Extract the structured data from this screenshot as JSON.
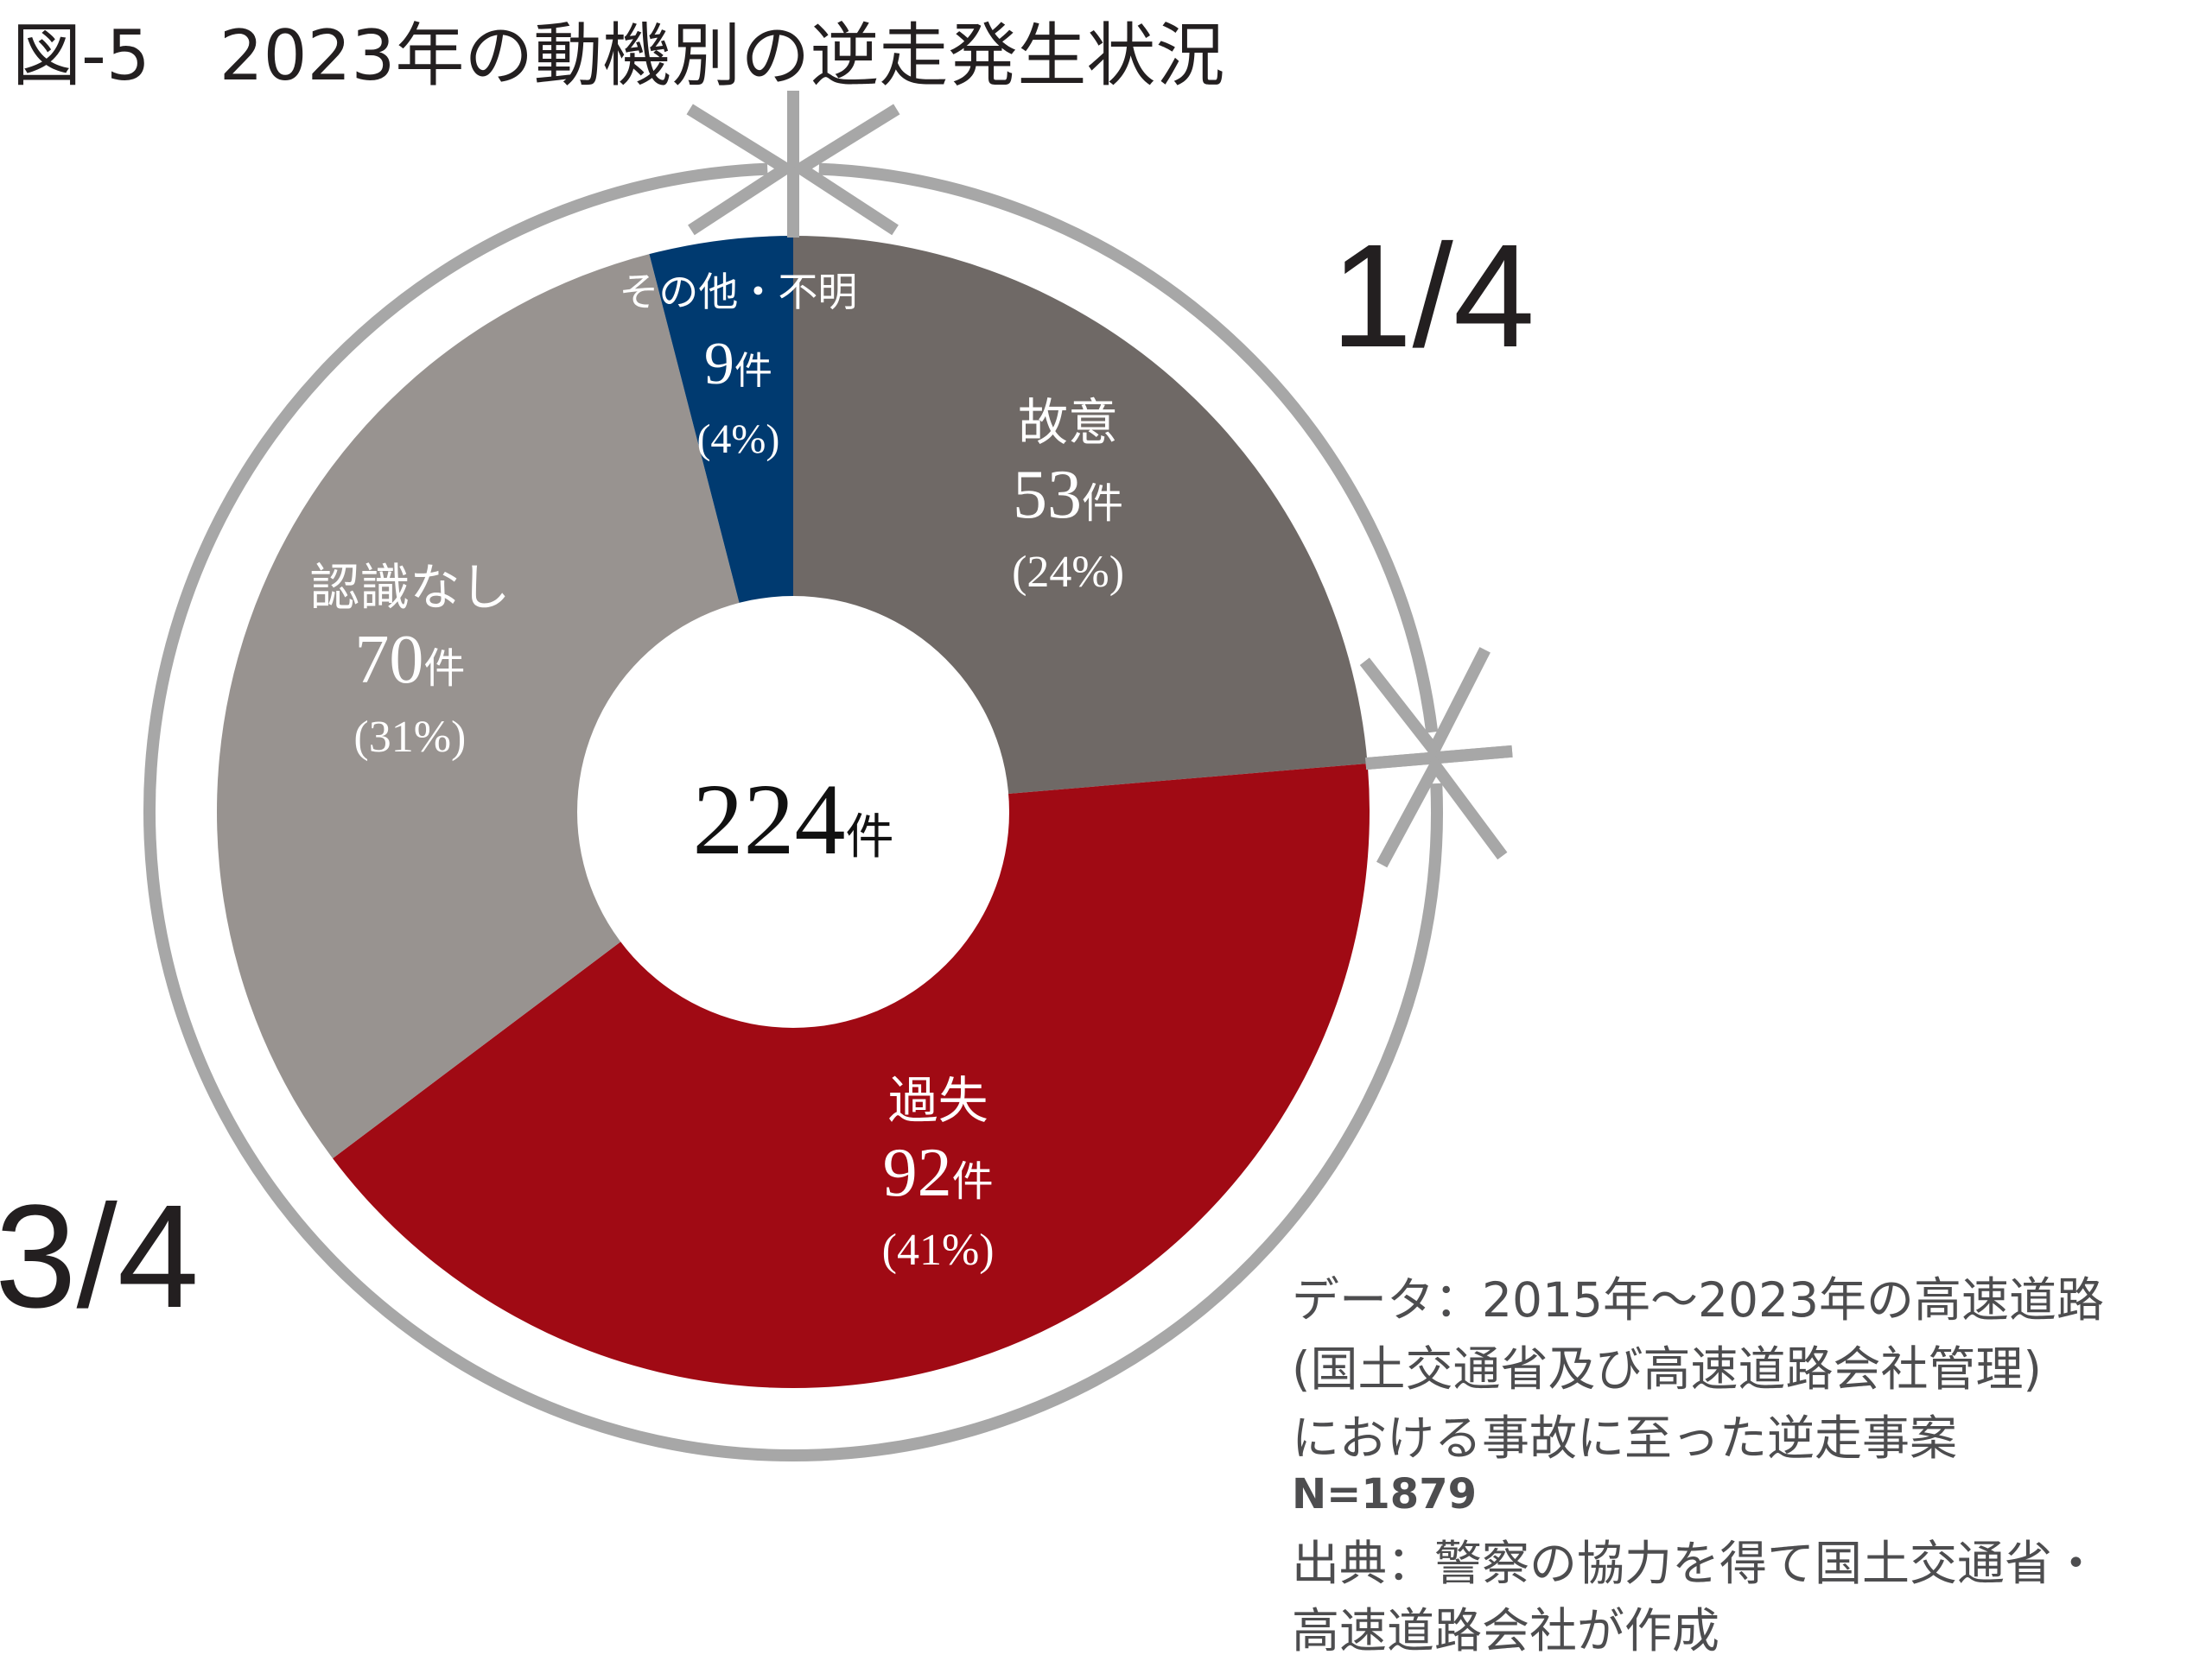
{
  "title": "図-5　2023年の動機別の逆走発生状況",
  "chart_data": {
    "type": "pie",
    "title": "図-5　2023年の動機別の逆走発生状況",
    "total_label": "224",
    "total_unit": "件",
    "slices": [
      {
        "name": "故意",
        "value": 53,
        "count_label": "53",
        "unit": "件",
        "percent_label": "(24%)",
        "color": "#6f6966",
        "text_color": "#ffffff"
      },
      {
        "name": "過失",
        "value": 92,
        "count_label": "92",
        "unit": "件",
        "percent_label": "(41%)",
        "color": "#a00a14",
        "text_color": "#ffffff"
      },
      {
        "name": "認識なし",
        "value": 70,
        "count_label": "70",
        "unit": "件",
        "percent_label": "(31%)",
        "color": "#989390",
        "text_color": "#ffffff"
      },
      {
        "name": "その他・不明",
        "value": 9,
        "count_label": "9",
        "unit": "件",
        "percent_label": "(4%)",
        "color": "#003a70",
        "text_color": "#ffffff"
      }
    ],
    "brackets": [
      {
        "label": "1/4",
        "from_slice": 0,
        "to_slice": 0
      },
      {
        "label": "3/4",
        "from_slice": 1,
        "to_slice": 3
      }
    ],
    "bracket_color": "#a7a7a7"
  },
  "notes": {
    "lines": [
      "データ：2015年〜2023年の高速道路",
      "(国土交通省及び高速道路会社管理)",
      "における事故に至った逆走事案"
    ],
    "n_label": "N=1879",
    "source_lines": [
      "出典：警察の協力を得て国土交通省・",
      "高速道路会社が作成"
    ]
  }
}
